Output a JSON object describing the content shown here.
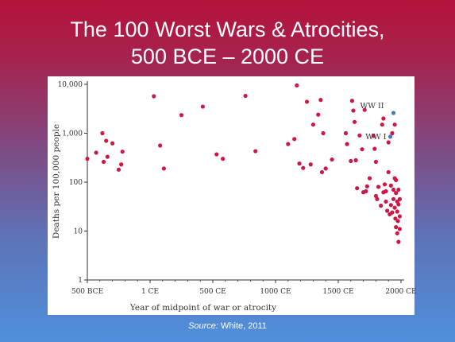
{
  "slide": {
    "title_line1": "The 100 Worst Wars & Atrocities,",
    "title_line2": "500 BCE – 2000 CE",
    "source_label": "Source:",
    "source_text": " White, 2011"
  },
  "colors": {
    "point": "#cf1745",
    "highlight": "#3f7cc4",
    "axis": "#333333"
  },
  "chart_data": {
    "type": "scatter",
    "title": "",
    "xlabel": "Year of  midpoint of war or atrocity",
    "ylabel": "Deaths per 100,000 people",
    "xscale": "linear",
    "yscale": "log",
    "xlim": [
      -500,
      2000
    ],
    "ylim": [
      1,
      10000
    ],
    "grid": false,
    "legend": "none",
    "x_ticks": [
      {
        "value": -500,
        "label": "500 BCE"
      },
      {
        "value": 0,
        "label": "1 CE"
      },
      {
        "value": 500,
        "label": "500 CE"
      },
      {
        "value": 1000,
        "label": "1000 CE"
      },
      {
        "value": 1500,
        "label": "1500 CE"
      },
      {
        "value": 2000,
        "label": "2000 CE"
      }
    ],
    "y_ticks": [
      {
        "value": 1,
        "label": "1"
      },
      {
        "value": 10,
        "label": "10"
      },
      {
        "value": 100,
        "label": "100"
      },
      {
        "value": 1000,
        "label": "1,000"
      },
      {
        "value": 10000,
        "label": "10,000"
      }
    ],
    "series": [
      {
        "points": [
          {
            "x": -500,
            "y": 300
          },
          {
            "x": -430,
            "y": 400
          },
          {
            "x": -380,
            "y": 1000
          },
          {
            "x": -370,
            "y": 260
          },
          {
            "x": -350,
            "y": 700
          },
          {
            "x": -340,
            "y": 330
          },
          {
            "x": -300,
            "y": 620
          },
          {
            "x": -250,
            "y": 180
          },
          {
            "x": -230,
            "y": 230
          },
          {
            "x": -220,
            "y": 420
          },
          {
            "x": 30,
            "y": 5700
          },
          {
            "x": 80,
            "y": 560
          },
          {
            "x": 110,
            "y": 190
          },
          {
            "x": 250,
            "y": 2350
          },
          {
            "x": 420,
            "y": 3500
          },
          {
            "x": 530,
            "y": 370
          },
          {
            "x": 580,
            "y": 300
          },
          {
            "x": 760,
            "y": 5800
          },
          {
            "x": 840,
            "y": 430
          },
          {
            "x": 1100,
            "y": 600
          },
          {
            "x": 1150,
            "y": 760
          },
          {
            "x": 1170,
            "y": 9500
          },
          {
            "x": 1190,
            "y": 240
          },
          {
            "x": 1220,
            "y": 195
          },
          {
            "x": 1250,
            "y": 4400
          },
          {
            "x": 1280,
            "y": 230
          },
          {
            "x": 1300,
            "y": 1500
          },
          {
            "x": 1340,
            "y": 2400
          },
          {
            "x": 1360,
            "y": 4800
          },
          {
            "x": 1370,
            "y": 160
          },
          {
            "x": 1380,
            "y": 1000
          },
          {
            "x": 1400,
            "y": 190
          },
          {
            "x": 1450,
            "y": 290
          },
          {
            "x": 1560,
            "y": 1000
          },
          {
            "x": 1570,
            "y": 600
          },
          {
            "x": 1600,
            "y": 270
          },
          {
            "x": 1610,
            "y": 4600
          },
          {
            "x": 1620,
            "y": 2900
          },
          {
            "x": 1630,
            "y": 1700
          },
          {
            "x": 1640,
            "y": 280
          },
          {
            "x": 1650,
            "y": 75
          },
          {
            "x": 1670,
            "y": 900
          },
          {
            "x": 1690,
            "y": 470
          },
          {
            "x": 1700,
            "y": 62
          },
          {
            "x": 1710,
            "y": 3000
          },
          {
            "x": 1720,
            "y": 65
          },
          {
            "x": 1730,
            "y": 82
          },
          {
            "x": 1750,
            "y": 120
          },
          {
            "x": 1780,
            "y": 880
          },
          {
            "x": 1790,
            "y": 480
          },
          {
            "x": 1800,
            "y": 260
          },
          {
            "x": 1800,
            "y": 52
          },
          {
            "x": 1810,
            "y": 45
          },
          {
            "x": 1820,
            "y": 80
          },
          {
            "x": 1840,
            "y": 33
          },
          {
            "x": 1850,
            "y": 1500
          },
          {
            "x": 1860,
            "y": 2000
          },
          {
            "x": 1860,
            "y": 62
          },
          {
            "x": 1870,
            "y": 90
          },
          {
            "x": 1880,
            "y": 65
          },
          {
            "x": 1880,
            "y": 40
          },
          {
            "x": 1890,
            "y": 26
          },
          {
            "x": 1900,
            "y": 650
          },
          {
            "x": 1900,
            "y": 160
          },
          {
            "x": 1910,
            "y": 22
          },
          {
            "x": 1920,
            "y": 85
          },
          {
            "x": 1920,
            "y": 34
          },
          {
            "x": 1930,
            "y": 1000
          },
          {
            "x": 1930,
            "y": 24
          },
          {
            "x": 1940,
            "y": 70
          },
          {
            "x": 1940,
            "y": 45
          },
          {
            "x": 1950,
            "y": 1500
          },
          {
            "x": 1950,
            "y": 120
          },
          {
            "x": 1950,
            "y": 30
          },
          {
            "x": 1955,
            "y": 18
          },
          {
            "x": 1960,
            "y": 110
          },
          {
            "x": 1960,
            "y": 60
          },
          {
            "x": 1960,
            "y": 12
          },
          {
            "x": 1970,
            "y": 40
          },
          {
            "x": 1970,
            "y": 25
          },
          {
            "x": 1970,
            "y": 9
          },
          {
            "x": 1975,
            "y": 16
          },
          {
            "x": 1980,
            "y": 70
          },
          {
            "x": 1980,
            "y": 35
          },
          {
            "x": 1980,
            "y": 6
          },
          {
            "x": 1990,
            "y": 45
          },
          {
            "x": 1990,
            "y": 20
          },
          {
            "x": 1990,
            "y": 11
          }
        ]
      }
    ],
    "highlighted": [
      {
        "label": "WW II",
        "x": 1940,
        "y": 2600
      },
      {
        "label": "WW I",
        "x": 1915,
        "y": 850
      }
    ]
  }
}
